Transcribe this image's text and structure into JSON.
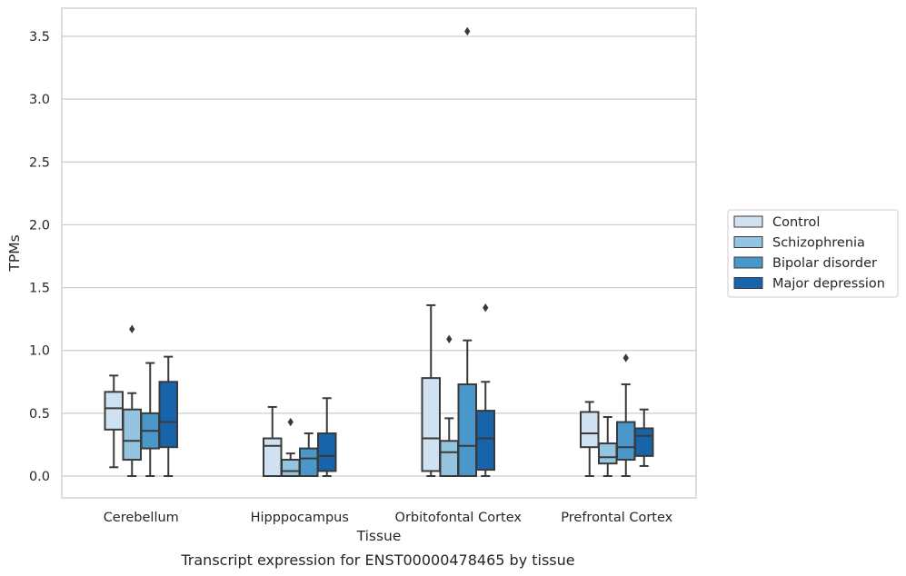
{
  "chart_data": {
    "type": "box",
    "categories": [
      "Cerebellum",
      "Hipppocampus",
      "Orbitofontal Cortex",
      "Prefrontal Cortex"
    ],
    "xlabel": "Tissue",
    "ylabel": "TPMs",
    "caption": "Transcript expression for ENST00000478465 by tissue",
    "ylim": [
      -0.17,
      3.72
    ],
    "yticks": [
      0.0,
      0.5,
      1.0,
      1.5,
      2.0,
      2.5,
      3.0,
      3.5
    ],
    "ytick_labels": [
      "0.0",
      "0.5",
      "1.0",
      "1.5",
      "2.0",
      "2.5",
      "3.0",
      "3.5"
    ],
    "grid": "horizontal",
    "legend_position": "right",
    "series": [
      {
        "name": "Control",
        "color": "#d0e1f2",
        "boxes": [
          {
            "whislo": 0.07,
            "q1": 0.37,
            "med": 0.54,
            "q3": 0.67,
            "whishi": 0.8,
            "fliers": []
          },
          {
            "whislo": 0.0,
            "q1": 0.0,
            "med": 0.24,
            "q3": 0.3,
            "whishi": 0.55,
            "fliers": []
          },
          {
            "whislo": 0.0,
            "q1": 0.04,
            "med": 0.3,
            "q3": 0.78,
            "whishi": 1.36,
            "fliers": []
          },
          {
            "whislo": 0.0,
            "q1": 0.23,
            "med": 0.34,
            "q3": 0.51,
            "whishi": 0.59,
            "fliers": []
          }
        ]
      },
      {
        "name": "Schizophrenia",
        "color": "#94c4df",
        "boxes": [
          {
            "whislo": 0.0,
            "q1": 0.13,
            "med": 0.28,
            "q3": 0.53,
            "whishi": 0.66,
            "fliers": [
              1.17
            ]
          },
          {
            "whislo": 0.0,
            "q1": 0.0,
            "med": 0.04,
            "q3": 0.13,
            "whishi": 0.18,
            "fliers": [
              0.43
            ]
          },
          {
            "whislo": 0.0,
            "q1": 0.0,
            "med": 0.19,
            "q3": 0.28,
            "whishi": 0.46,
            "fliers": [
              1.09
            ]
          },
          {
            "whislo": 0.0,
            "q1": 0.1,
            "med": 0.15,
            "q3": 0.26,
            "whishi": 0.47,
            "fliers": []
          }
        ]
      },
      {
        "name": "Bipolar disorder",
        "color": "#4a98c9",
        "boxes": [
          {
            "whislo": 0.0,
            "q1": 0.22,
            "med": 0.36,
            "q3": 0.5,
            "whishi": 0.9,
            "fliers": []
          },
          {
            "whislo": 0.0,
            "q1": 0.0,
            "med": 0.14,
            "q3": 0.22,
            "whishi": 0.34,
            "fliers": []
          },
          {
            "whislo": 0.0,
            "q1": 0.0,
            "med": 0.24,
            "q3": 0.73,
            "whishi": 1.08,
            "fliers": [
              3.54
            ]
          },
          {
            "whislo": 0.0,
            "q1": 0.13,
            "med": 0.23,
            "q3": 0.43,
            "whishi": 0.73,
            "fliers": [
              0.94
            ]
          }
        ]
      },
      {
        "name": "Major depression",
        "color": "#1764ab",
        "boxes": [
          {
            "whislo": 0.0,
            "q1": 0.23,
            "med": 0.43,
            "q3": 0.75,
            "whishi": 0.95,
            "fliers": []
          },
          {
            "whislo": 0.0,
            "q1": 0.04,
            "med": 0.16,
            "q3": 0.34,
            "whishi": 0.62,
            "fliers": []
          },
          {
            "whislo": 0.0,
            "q1": 0.05,
            "med": 0.3,
            "q3": 0.52,
            "whishi": 0.75,
            "fliers": [
              1.34
            ]
          },
          {
            "whislo": 0.08,
            "q1": 0.16,
            "med": 0.32,
            "q3": 0.38,
            "whishi": 0.53,
            "fliers": []
          }
        ]
      }
    ]
  }
}
